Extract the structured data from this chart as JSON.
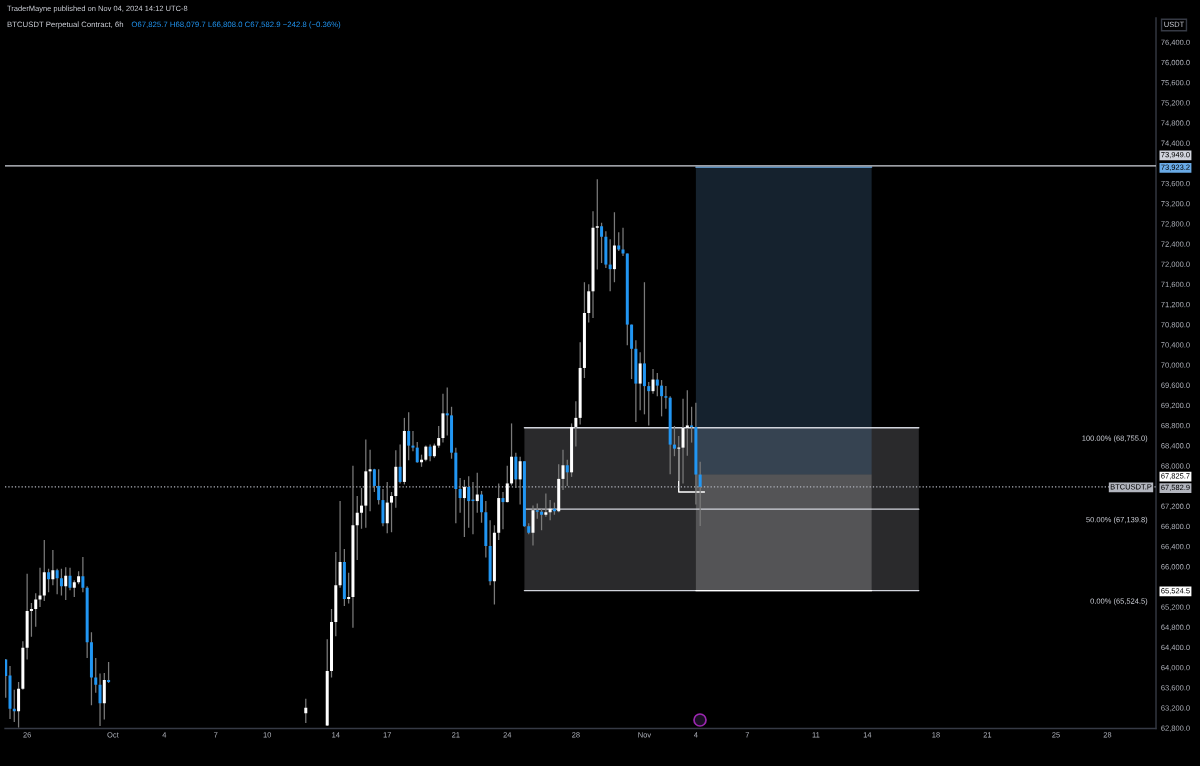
{
  "chart_data": {
    "type": "candlestick",
    "title": "BTCUSDT Perpetual Contract, 6h",
    "subtitle": "O67,825.7 H68,079.7 L66,808.0 C67,582.9 −242.8 (−0.36%)",
    "ylabel": "USDT",
    "annotations": [
      "TraderMayne published on Nov 04, 2024 14:12 UTC-8"
    ],
    "x": [
      "2024-09-24T18:00",
      "2024-09-25T00:00",
      "2024-09-25T06:00",
      "2024-09-25T12:00",
      "2024-09-25T18:00",
      "2024-09-26T00:00",
      "2024-09-26T06:00",
      "2024-09-26T12:00",
      "2024-09-26T18:00",
      "2024-09-27T00:00",
      "2024-09-27T06:00",
      "2024-09-27T12:00",
      "2024-09-27T18:00",
      "2024-09-28T00:00",
      "2024-09-28T06:00",
      "2024-09-28T12:00",
      "2024-09-28T18:00",
      "2024-09-29T00:00",
      "2024-09-29T06:00",
      "2024-09-29T12:00",
      "2024-09-29T18:00",
      "2024-09-30T00:00",
      "2024-09-30T06:00",
      "2024-09-30T12:00",
      "2024-09-30T18:00",
      "2024-10-12T06:00",
      "2024-10-13T12:00",
      "2024-10-13T18:00",
      "2024-10-14T00:00",
      "2024-10-14T06:00",
      "2024-10-14T12:00",
      "2024-10-14T18:00",
      "2024-10-15T00:00",
      "2024-10-15T06:00",
      "2024-10-15T12:00",
      "2024-10-15T18:00",
      "2024-10-16T00:00",
      "2024-10-16T06:00",
      "2024-10-16T12:00",
      "2024-10-16T18:00",
      "2024-10-17T00:00",
      "2024-10-17T06:00",
      "2024-10-17T12:00",
      "2024-10-17T18:00",
      "2024-10-18T00:00",
      "2024-10-18T06:00",
      "2024-10-18T12:00",
      "2024-10-18T18:00",
      "2024-10-19T00:00",
      "2024-10-19T06:00",
      "2024-10-19T12:00",
      "2024-10-19T18:00",
      "2024-10-20T00:00",
      "2024-10-20T06:00",
      "2024-10-20T12:00",
      "2024-10-20T18:00",
      "2024-10-21T00:00",
      "2024-10-21T06:00",
      "2024-10-21T12:00",
      "2024-10-21T18:00",
      "2024-10-22T00:00",
      "2024-10-22T06:00",
      "2024-10-22T12:00",
      "2024-10-22T18:00",
      "2024-10-23T00:00",
      "2024-10-23T06:00",
      "2024-10-23T12:00",
      "2024-10-23T18:00",
      "2024-10-24T00:00",
      "2024-10-24T06:00",
      "2024-10-24T12:00",
      "2024-10-24T18:00",
      "2024-10-25T00:00",
      "2024-10-25T06:00",
      "2024-10-25T12:00",
      "2024-10-25T18:00",
      "2024-10-26T00:00",
      "2024-10-26T06:00",
      "2024-10-26T12:00",
      "2024-10-26T18:00",
      "2024-10-27T00:00",
      "2024-10-27T06:00",
      "2024-10-27T12:00",
      "2024-10-27T18:00",
      "2024-10-28T00:00",
      "2024-10-28T06:00",
      "2024-10-28T12:00",
      "2024-10-28T18:00",
      "2024-10-29T00:00",
      "2024-10-29T06:00",
      "2024-10-29T12:00",
      "2024-10-29T18:00",
      "2024-10-30T00:00",
      "2024-10-30T06:00",
      "2024-10-30T12:00",
      "2024-10-30T18:00",
      "2024-10-31T00:00",
      "2024-10-31T06:00",
      "2024-10-31T12:00",
      "2024-10-31T18:00",
      "2024-11-01T00:00",
      "2024-11-01T06:00",
      "2024-11-01T12:00",
      "2024-11-01T18:00",
      "2024-11-02T00:00",
      "2024-11-02T06:00",
      "2024-11-02T12:00",
      "2024-11-02T18:00",
      "2024-11-03T00:00",
      "2024-11-03T06:00",
      "2024-11-03T12:00",
      "2024-11-03T18:00",
      "2024-11-04T00:00",
      "2024-11-04T06:00"
    ],
    "ohlc": [
      [
        64160,
        64170,
        63400,
        63830
      ],
      [
        63840,
        64030,
        62980,
        63180
      ],
      [
        63180,
        63560,
        62920,
        63130
      ],
      [
        63130,
        63710,
        62810,
        63580
      ],
      [
        63580,
        64520,
        63560,
        64390
      ],
      [
        64390,
        65860,
        64160,
        65120
      ],
      [
        65120,
        65280,
        64610,
        65160
      ],
      [
        65160,
        65470,
        64810,
        65350
      ],
      [
        65350,
        65980,
        65200,
        65430
      ],
      [
        65430,
        66530,
        65320,
        65890
      ],
      [
        65890,
        65960,
        65490,
        65750
      ],
      [
        65750,
        66330,
        65630,
        65930
      ],
      [
        65930,
        65960,
        65450,
        65770
      ],
      [
        65770,
        65960,
        65430,
        65610
      ],
      [
        65610,
        65990,
        65340,
        65820
      ],
      [
        65820,
        65980,
        65530,
        65580
      ],
      [
        65580,
        65730,
        65400,
        65690
      ],
      [
        65690,
        65910,
        65650,
        65810
      ],
      [
        65810,
        66190,
        65490,
        65580
      ],
      [
        65580,
        65610,
        64190,
        64500
      ],
      [
        64500,
        64700,
        63250,
        63800
      ],
      [
        63800,
        64190,
        63500,
        63660
      ],
      [
        63660,
        63880,
        62840,
        63290
      ],
      [
        63290,
        63890,
        62970,
        63750
      ],
      [
        63750,
        64110,
        63690,
        63710
      ],
      [
        63090,
        63380,
        62900,
        63200
      ],
      [
        62850,
        64560,
        62840,
        63930
      ],
      [
        63930,
        65160,
        63800,
        64900
      ],
      [
        64900,
        66290,
        64620,
        65630
      ],
      [
        65630,
        67300,
        65580,
        66090
      ],
      [
        66090,
        66350,
        65220,
        65360
      ],
      [
        65360,
        65880,
        65270,
        65400
      ],
      [
        65400,
        68000,
        64790,
        66820
      ],
      [
        66820,
        67400,
        66130,
        67070
      ],
      [
        67070,
        67560,
        66750,
        67210
      ],
      [
        67210,
        68520,
        66770,
        67890
      ],
      [
        67890,
        68320,
        67100,
        67930
      ],
      [
        67930,
        67940,
        67480,
        67600
      ],
      [
        67600,
        67930,
        67230,
        67320
      ],
      [
        67320,
        67540,
        66800,
        66860
      ],
      [
        66860,
        67680,
        66660,
        67270
      ],
      [
        67270,
        67480,
        66680,
        67400
      ],
      [
        67400,
        68310,
        67170,
        67980
      ],
      [
        67980,
        68420,
        67650,
        67680
      ],
      [
        67680,
        68950,
        67630,
        68690
      ],
      [
        68690,
        69060,
        68110,
        68400
      ],
      [
        68400,
        68690,
        68290,
        68360
      ],
      [
        68360,
        68470,
        68060,
        68070
      ],
      [
        68070,
        68220,
        67980,
        68120
      ],
      [
        68120,
        68400,
        68090,
        68380
      ],
      [
        68380,
        68420,
        68090,
        68190
      ],
      [
        68190,
        68440,
        68160,
        68400
      ],
      [
        68400,
        68790,
        68360,
        68550
      ],
      [
        68550,
        69430,
        68460,
        69040
      ],
      [
        69040,
        69550,
        68600,
        69000
      ],
      [
        69000,
        69170,
        68140,
        68260
      ],
      [
        68260,
        68360,
        66860,
        67540
      ],
      [
        67540,
        67760,
        67070,
        67360
      ],
      [
        67360,
        67720,
        66590,
        67580
      ],
      [
        67580,
        67790,
        66770,
        67300
      ],
      [
        67330,
        67680,
        66640,
        67300
      ],
      [
        67300,
        67860,
        67070,
        67430
      ],
      [
        67430,
        67500,
        66870,
        67080
      ],
      [
        67080,
        67300,
        66180,
        66410
      ],
      [
        66410,
        66920,
        65630,
        65710
      ],
      [
        65710,
        66820,
        65250,
        66670
      ],
      [
        66670,
        67650,
        66530,
        67360
      ],
      [
        67360,
        67480,
        66740,
        67280
      ],
      [
        67280,
        68000,
        67270,
        67650
      ],
      [
        67650,
        68840,
        67610,
        68180
      ],
      [
        68180,
        68260,
        67560,
        67730
      ],
      [
        67730,
        68180,
        67230,
        68090
      ],
      [
        68090,
        68090,
        66790,
        66800
      ],
      [
        66800,
        66860,
        66640,
        66670
      ],
      [
        66670,
        67210,
        66420,
        67120
      ],
      [
        67120,
        67250,
        66950,
        67090
      ],
      [
        67090,
        67150,
        66720,
        67030
      ],
      [
        67030,
        67450,
        66990,
        67080
      ],
      [
        67080,
        67320,
        66920,
        67150
      ],
      [
        67150,
        67270,
        67030,
        67100
      ],
      [
        67100,
        68030,
        67080,
        67740
      ],
      [
        67740,
        68320,
        67520,
        68010
      ],
      [
        68010,
        68120,
        67600,
        67870
      ],
      [
        67870,
        68840,
        67780,
        68770
      ],
      [
        68770,
        69280,
        68380,
        68950
      ],
      [
        68950,
        70450,
        68820,
        69940
      ],
      [
        69940,
        71640,
        69740,
        71030
      ],
      [
        71030,
        71600,
        70840,
        71460
      ],
      [
        71460,
        73050,
        70930,
        72720
      ],
      [
        72720,
        73680,
        71890,
        72750
      ],
      [
        72750,
        72820,
        72020,
        72540
      ],
      [
        72540,
        72650,
        71920,
        71990
      ],
      [
        71990,
        72490,
        71460,
        71900
      ],
      [
        71900,
        73030,
        71640,
        72370
      ],
      [
        72370,
        72630,
        72260,
        72290
      ],
      [
        72290,
        72720,
        72160,
        72210
      ],
      [
        72210,
        72210,
        70390,
        70800
      ],
      [
        70800,
        70800,
        69720,
        70320
      ],
      [
        70320,
        70490,
        68870,
        69630
      ],
      [
        69630,
        70250,
        69100,
        70030
      ],
      [
        70030,
        71640,
        69020,
        69580
      ],
      [
        69580,
        69660,
        68800,
        69480
      ],
      [
        69480,
        69920,
        69430,
        69710
      ],
      [
        69710,
        69840,
        69380,
        69590
      ],
      [
        69590,
        69700,
        68980,
        69380
      ],
      [
        69380,
        69580,
        69130,
        69350
      ],
      [
        69350,
        69380,
        67830,
        68420
      ],
      [
        68420,
        68790,
        68190,
        68340
      ],
      [
        68340,
        68590,
        67700,
        68360
      ],
      [
        68360,
        69330,
        67650,
        68750
      ],
      [
        68750,
        69500,
        68200,
        68800
      ],
      [
        68800,
        69170,
        68460,
        68770
      ],
      [
        68770,
        69250,
        67230,
        67825.7
      ],
      [
        67825.7,
        68079.7,
        66808.0,
        67582.9
      ]
    ],
    "colors": [
      "#2196f3",
      "#2196f3",
      "#2196f3",
      "#ffffff",
      "#ffffff",
      "#ffffff",
      "#ffffff",
      "#ffffff",
      "#ffffff",
      "#ffffff",
      "#2196f3",
      "#ffffff",
      "#2196f3",
      "#2196f3",
      "#ffffff",
      "#2196f3",
      "#ffffff",
      "#ffffff",
      "#2196f3",
      "#2196f3",
      "#2196f3",
      "#2196f3",
      "#2196f3",
      "#ffffff",
      "#2196f3",
      "#ffffff",
      "#ffffff",
      "#ffffff",
      "#ffffff",
      "#ffffff",
      "#2196f3",
      "#ffffff",
      "#ffffff",
      "#ffffff",
      "#ffffff",
      "#ffffff",
      "#ffffff",
      "#2196f3",
      "#2196f3",
      "#2196f3",
      "#ffffff",
      "#ffffff",
      "#ffffff",
      "#2196f3",
      "#ffffff",
      "#2196f3",
      "#2196f3",
      "#2196f3",
      "#ffffff",
      "#ffffff",
      "#2196f3",
      "#ffffff",
      "#ffffff",
      "#ffffff",
      "#2196f3",
      "#2196f3",
      "#2196f3",
      "#2196f3",
      "#ffffff",
      "#2196f3",
      "#2196f3",
      "#ffffff",
      "#2196f3",
      "#2196f3",
      "#2196f3",
      "#ffffff",
      "#ffffff",
      "#2196f3",
      "#ffffff",
      "#ffffff",
      "#2196f3",
      "#ffffff",
      "#2196f3",
      "#2196f3",
      "#ffffff",
      "#2196f3",
      "#2196f3",
      "#ffffff",
      "#ffffff",
      "#2196f3",
      "#ffffff",
      "#ffffff",
      "#2196f3",
      "#ffffff",
      "#ffffff",
      "#ffffff",
      "#ffffff",
      "#ffffff",
      "#ffffff",
      "#ffffff",
      "#2196f3",
      "#2196f3",
      "#2196f3",
      "#ffffff",
      "#2196f3",
      "#2196f3",
      "#2196f3",
      "#2196f3",
      "#2196f3",
      "#ffffff",
      "#2196f3",
      "#2196f3",
      "#ffffff",
      "#2196f3",
      "#2196f3",
      "#2196f3",
      "#2196f3",
      "#2196f3",
      "#ffffff",
      "#ffffff",
      "#ffffff",
      "#2196f3",
      "#2196f3",
      "#2196f3"
    ],
    "series": [
      {
        "type": "line",
        "name": "100.00% (68,755.0)",
        "color": "#d1d4dc",
        "x": [
          "2024-10-25T00:00",
          "2024-11-17T00:00"
        ],
        "values": [
          68755.0,
          68755.0
        ]
      },
      {
        "type": "line",
        "name": "50.00% (67,139.8)",
        "color": "#d1d4dc",
        "x": [
          "2024-10-25T00:00",
          "2024-11-17T00:00"
        ],
        "values": [
          67139.8,
          67139.8
        ],
        "lower": [
          65524.5,
          65524.5
        ],
        "upper": [
          68755.0,
          68755.0
        ]
      },
      {
        "type": "line",
        "name": "0.00% (65,524.5)",
        "color": "#d1d4dc",
        "x": [
          "2024-10-25T00:00",
          "2024-11-17T00:00"
        ],
        "values": [
          65524.5,
          65524.5
        ]
      },
      {
        "type": "line",
        "color": "#69aae6",
        "x": [
          "2024-11-04T00:00",
          "2024-11-14T06:00"
        ],
        "values": [
          73923.2,
          73923.2
        ],
        "lower": [
          67825.7,
          67825.7
        ],
        "upper": [
          73923.2,
          73923.2
        ]
      },
      {
        "type": "line",
        "color": "#ffffff",
        "x": [
          "2024-11-04T00:00",
          "2024-11-14T06:00"
        ],
        "values": [
          65524.5,
          65524.5
        ],
        "lower": [
          65524.5,
          65524.5
        ],
        "upper": [
          67825.7,
          67825.7
        ]
      },
      {
        "type": "line",
        "color": "#ffffff",
        "x": [
          "2024-11-03T00:00",
          "2024-11-03T00:00",
          "2024-11-04T12:00"
        ],
        "values": [
          68360,
          67480,
          67480
        ]
      }
    ],
    "ref_lines": [
      {
        "axis": "y",
        "value": 73949.0,
        "label": "73,949.0",
        "color": "#d1d4dc",
        "line_style": "solid"
      },
      {
        "axis": "y",
        "value": 67582.9,
        "label": "BTCUSDT.P",
        "color": "#b2b5be",
        "line_style": "dotted"
      }
    ],
    "xlim": [
      "2024-09-24T17:00",
      "2024-11-30T20:00"
    ],
    "ylim": [
      62790,
      76880
    ],
    "xticks": [
      {
        "value": "2024-09-26",
        "label": "26"
      },
      {
        "value": "2024-10-01",
        "label": "Oct"
      },
      {
        "value": "2024-10-04",
        "label": "4"
      },
      {
        "value": "2024-10-07",
        "label": "7"
      },
      {
        "value": "2024-10-10",
        "label": "10"
      },
      {
        "value": "2024-10-14",
        "label": "14"
      },
      {
        "value": "2024-10-17",
        "label": "17"
      },
      {
        "value": "2024-10-21",
        "label": "21"
      },
      {
        "value": "2024-10-24",
        "label": "24"
      },
      {
        "value": "2024-10-28",
        "label": "28"
      },
      {
        "value": "2024-11-01",
        "label": "Nov"
      },
      {
        "value": "2024-11-04",
        "label": "4"
      },
      {
        "value": "2024-11-07",
        "label": "7"
      },
      {
        "value": "2024-11-11",
        "label": "11"
      },
      {
        "value": "2024-11-14",
        "label": "14"
      },
      {
        "value": "2024-11-18",
        "label": "18"
      },
      {
        "value": "2024-11-21",
        "label": "21"
      },
      {
        "value": "2024-11-25",
        "label": "25"
      },
      {
        "value": "2024-11-28",
        "label": "28"
      }
    ],
    "yticks": [
      {
        "value": 62800,
        "label": "62,800.0"
      },
      {
        "value": 63200,
        "label": "63,200.0"
      },
      {
        "value": 63600,
        "label": "63,600.0"
      },
      {
        "value": 64000,
        "label": "64,000.0"
      },
      {
        "value": 64400,
        "label": "64,400.0"
      },
      {
        "value": 64800,
        "label": "64,800.0"
      },
      {
        "value": 65200,
        "label": "65,200.0"
      },
      {
        "value": 65524.5,
        "label": "65,524.5"
      },
      {
        "value": 66000,
        "label": "66,000.0"
      },
      {
        "value": 66400,
        "label": "66,400.0"
      },
      {
        "value": 66800,
        "label": "66,800.0"
      },
      {
        "value": 67200,
        "label": "67,200.0"
      },
      {
        "value": 67582.9,
        "label": "67,582.9"
      },
      {
        "value": 67825.7,
        "label": "67,825.7"
      },
      {
        "value": 68000,
        "label": "68,000.0"
      },
      {
        "value": 68400,
        "label": "68,400.0"
      },
      {
        "value": 68800,
        "label": "68,800.0"
      },
      {
        "value": 69200,
        "label": "69,200.0"
      },
      {
        "value": 69600,
        "label": "69,600.0"
      },
      {
        "value": 70000,
        "label": "70,000.0"
      },
      {
        "value": 70400,
        "label": "70,400.0"
      },
      {
        "value": 70800,
        "label": "70,800.0"
      },
      {
        "value": 71200,
        "label": "71,200.0"
      },
      {
        "value": 71600,
        "label": "71,600.0"
      },
      {
        "value": 72000,
        "label": "72,000.0"
      },
      {
        "value": 72400,
        "label": "72,400.0"
      },
      {
        "value": 72800,
        "label": "72,800.0"
      },
      {
        "value": 73200,
        "label": "73,200.0"
      },
      {
        "value": 73600,
        "label": "73,600.0"
      },
      {
        "value": 73923.2,
        "label": "73,923.2"
      },
      {
        "value": 74400,
        "label": "74,400.0"
      },
      {
        "value": 74800,
        "label": "74,800.0"
      },
      {
        "value": 75200,
        "label": "75,200.0"
      },
      {
        "value": 75600,
        "label": "75,600.0"
      },
      {
        "value": 76000,
        "label": "76,000.0"
      },
      {
        "value": 76400,
        "label": "76,400.0"
      }
    ]
  }
}
